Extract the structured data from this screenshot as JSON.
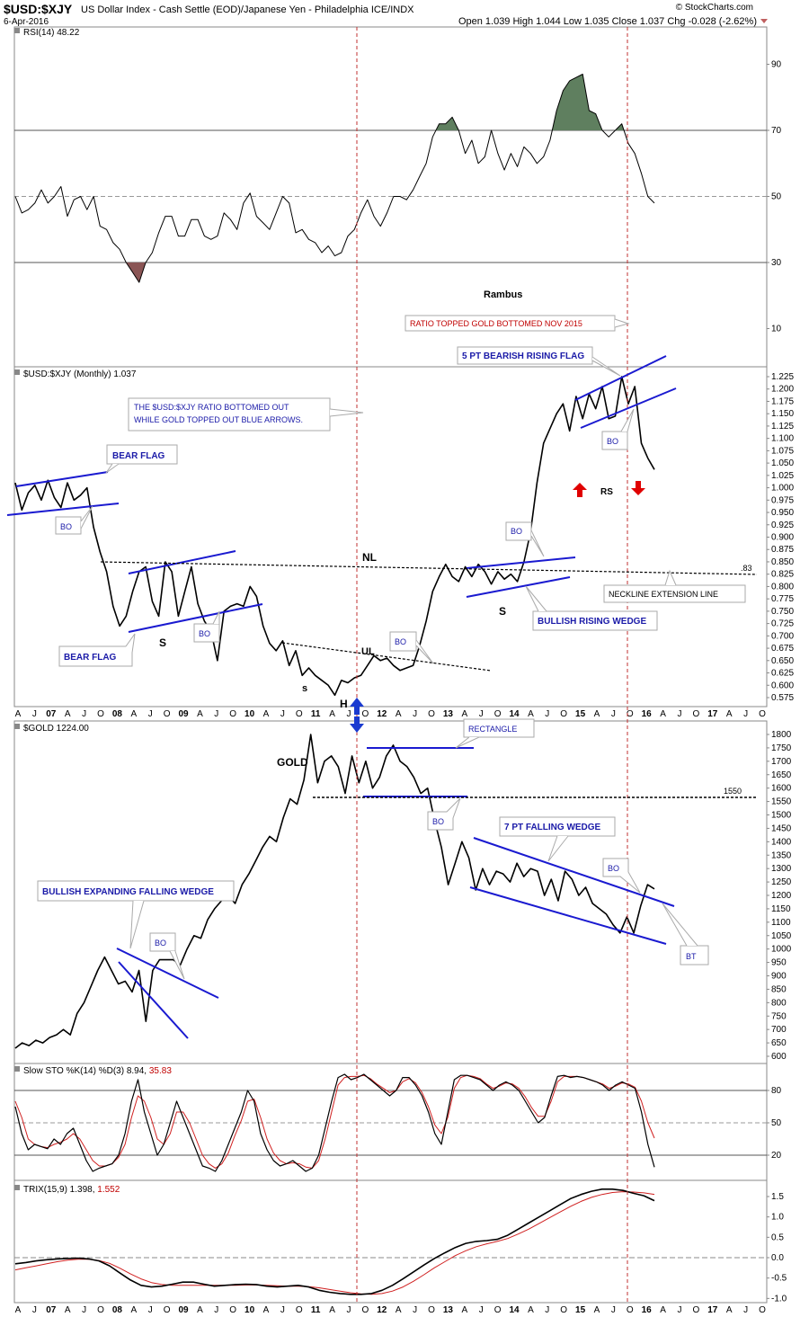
{
  "header": {
    "symbol": "$USD:$XJY",
    "description": "US Dollar Index - Cash Settle (EOD)/Japanese Yen - Philadelphia  ICE/INDX",
    "date": "6-Apr-2016",
    "watermark": "© StockCharts.com",
    "ohlc": "Open 1.039  High 1.044  Low 1.035  Close 1.037  Chg -0.028 (-2.62%)"
  },
  "x_axis": {
    "months": [
      "A",
      "J",
      "07",
      "A",
      "J",
      "O",
      "08",
      "A",
      "J",
      "O",
      "09",
      "A",
      "J",
      "O",
      "10",
      "A",
      "J",
      "O",
      "11",
      "A",
      "J",
      "O",
      "12",
      "A",
      "J",
      "O",
      "13",
      "A",
      "J",
      "O",
      "14",
      "A",
      "J",
      "O",
      "15",
      "A",
      "J",
      "O",
      "16",
      "A",
      "J",
      "O",
      "17",
      "A",
      "J",
      "O"
    ]
  },
  "panels": {
    "rsi": {
      "legend": "RSI(14) 48.22",
      "ticks": [
        "90",
        "70",
        "50",
        "30",
        "10"
      ],
      "tick_values": [
        90,
        70,
        50,
        30,
        10
      ],
      "ylim": [
        0,
        100
      ],
      "overbought": 70,
      "oversold": 30,
      "mid": 50,
      "fill_up": "#5f7f5f",
      "fill_down": "#8a5555"
    },
    "price": {
      "legend": "$USD:$XJY (Monthly) 1.037",
      "ticks": [
        "1.225",
        "1.200",
        "1.175",
        "1.150",
        "1.125",
        "1.100",
        "1.075",
        "1.050",
        "1.025",
        "1.000",
        "0.975",
        "0.950",
        "0.925",
        "0.900",
        "0.875",
        "0.850",
        "0.825",
        "0.800",
        "0.775",
        "0.750",
        "0.725",
        "0.700",
        "0.675",
        "0.650",
        "0.625",
        "0.600",
        "0.575"
      ],
      "ylim": [
        0.565,
        1.24
      ]
    },
    "gold": {
      "legend": "$GOLD 1224.00",
      "ticks": [
        "1800",
        "1750",
        "1700",
        "1650",
        "1600",
        "1550",
        "1500",
        "1450",
        "1400",
        "1350",
        "1300",
        "1250",
        "1200",
        "1150",
        "1100",
        "1050",
        "1000",
        "950",
        "900",
        "850",
        "800",
        "750",
        "700",
        "650",
        "600"
      ],
      "ylim": [
        580,
        1830
      ]
    },
    "sto": {
      "legend_k": "Slow STO %K(14) %D(3) 8.94,",
      "legend_d": "35.83",
      "ticks": [
        "80",
        "50",
        "20"
      ],
      "tick_values": [
        80,
        50,
        20
      ],
      "ylim": [
        0,
        100
      ]
    },
    "trix": {
      "legend_a": "TRIX(15,9) 1.398,",
      "legend_b": "1.552",
      "ticks": [
        "1.5",
        "1.0",
        "0.5",
        "0.0",
        "-0.5",
        "-1.0"
      ],
      "tick_values": [
        1.5,
        1.0,
        0.5,
        0.0,
        -0.5,
        -1.0
      ],
      "ylim": [
        -1.05,
        1.75
      ]
    }
  },
  "annotations": {
    "rambus": "Rambus",
    "ratio_topped": "RATIO TOPPED GOLD BOTTOMED NOV 2015",
    "five_pt": "5 PT BEARISH RISING FLAG",
    "ratio_bottomed_1": "THE $USD:$XJY RATIO BOTTOMED OUT",
    "ratio_bottomed_2": "WHILE GOLD TOPPED OUT BLUE ARROWS.",
    "bear_flag_1": "BEAR FLAG",
    "bear_flag_2": "BEAR FLAG",
    "bo": "BO",
    "nl": "NL",
    "ul": "UL",
    "s": "S",
    "s_small": "s",
    "h": "H",
    "rs": "RS",
    "neckline_ext": "NECKLINE EXTENSION LINE",
    "neckline_value": ".83",
    "bullish_wedge": "BULLISH RISING WEDGE",
    "gold_title": "GOLD",
    "rectangle": "RECTANGLE",
    "gold_1550": "1550",
    "seven_pt": "7 PT FALLING WEDGE",
    "bt": "BT",
    "expanding": "BULLISH EXPANDING FALLING WEDGE"
  },
  "chart_data": [
    {
      "type": "line",
      "title": "RSI(14)",
      "series": [
        {
          "name": "RSI(14)",
          "values": [
            50,
            45,
            46,
            48,
            52,
            48,
            50,
            53,
            44,
            49,
            50,
            46,
            50,
            41,
            40,
            36,
            34,
            30,
            27,
            24,
            30,
            33,
            39,
            44,
            44,
            38,
            38,
            43,
            43,
            38,
            37,
            38,
            45,
            43,
            40,
            48,
            51,
            44,
            42,
            40,
            45,
            50,
            48,
            39,
            40,
            37,
            36,
            33,
            35,
            32,
            33,
            38,
            40,
            45,
            49,
            44,
            41,
            45,
            50,
            50,
            49,
            52,
            56,
            60,
            68,
            72,
            72,
            74,
            70,
            63,
            67,
            60,
            62,
            70,
            63,
            58,
            63,
            59,
            65,
            63,
            60,
            62,
            67,
            76,
            82,
            85,
            86,
            87,
            76,
            75,
            70,
            68,
            70,
            72,
            66,
            63,
            57,
            50,
            48
          ]
        }
      ]
    },
    {
      "type": "line",
      "title": "$USD:$XJY (Monthly)",
      "series": [
        {
          "name": "$USD:$XJY",
          "values": [
            1.01,
            0.955,
            0.99,
            1.005,
            0.975,
            1.015,
            0.98,
            0.96,
            1.01,
            0.975,
            0.985,
            1.0,
            0.92,
            0.87,
            0.83,
            0.76,
            0.72,
            0.74,
            0.79,
            0.83,
            0.84,
            0.77,
            0.74,
            0.85,
            0.83,
            0.74,
            0.79,
            0.84,
            0.765,
            0.73,
            0.71,
            0.65,
            0.75,
            0.76,
            0.765,
            0.76,
            0.8,
            0.78,
            0.72,
            0.685,
            0.67,
            0.69,
            0.64,
            0.67,
            0.62,
            0.635,
            0.62,
            0.61,
            0.6,
            0.58,
            0.61,
            0.605,
            0.615,
            0.62,
            0.64,
            0.66,
            0.65,
            0.655,
            0.64,
            0.63,
            0.635,
            0.64,
            0.68,
            0.73,
            0.79,
            0.82,
            0.845,
            0.82,
            0.81,
            0.84,
            0.82,
            0.845,
            0.83,
            0.805,
            0.83,
            0.815,
            0.825,
            0.81,
            0.85,
            0.91,
            1.01,
            1.09,
            1.12,
            1.15,
            1.17,
            1.115,
            1.185,
            1.14,
            1.19,
            1.16,
            1.205,
            1.14,
            1.145,
            1.225,
            1.17,
            1.205,
            1.09,
            1.06,
            1.037
          ]
        }
      ]
    },
    {
      "type": "line",
      "title": "$GOLD",
      "series": [
        {
          "name": "$GOLD",
          "values": [
            630,
            650,
            640,
            660,
            650,
            670,
            680,
            700,
            680,
            760,
            800,
            860,
            920,
            970,
            920,
            870,
            880,
            840,
            920,
            730,
            920,
            960,
            960,
            960,
            940,
            1000,
            1050,
            1040,
            1110,
            1150,
            1180,
            1200,
            1170,
            1240,
            1280,
            1330,
            1380,
            1420,
            1400,
            1490,
            1560,
            1540,
            1630,
            1800,
            1620,
            1700,
            1720,
            1680,
            1580,
            1720,
            1620,
            1700,
            1600,
            1640,
            1720,
            1760,
            1700,
            1680,
            1640,
            1580,
            1600,
            1480,
            1380,
            1240,
            1320,
            1400,
            1340,
            1220,
            1300,
            1240,
            1290,
            1280,
            1250,
            1320,
            1270,
            1300,
            1290,
            1200,
            1260,
            1180,
            1290,
            1260,
            1200,
            1230,
            1170,
            1150,
            1130,
            1090,
            1060,
            1120,
            1060,
            1160,
            1240,
            1224
          ]
        }
      ]
    },
    {
      "type": "line",
      "title": "Slow STO %K(14) %D(3)",
      "series": [
        {
          "name": "%K",
          "values": [
            65,
            40,
            25,
            30,
            28,
            26,
            35,
            30,
            40,
            45,
            30,
            15,
            5,
            8,
            10,
            12,
            20,
            40,
            70,
            90,
            60,
            40,
            20,
            30,
            50,
            70,
            55,
            40,
            25,
            10,
            8,
            5,
            15,
            30,
            45,
            60,
            80,
            70,
            40,
            25,
            15,
            10,
            12,
            15,
            10,
            5,
            8,
            20,
            45,
            70,
            92,
            95,
            90,
            92,
            95,
            90,
            85,
            80,
            75,
            80,
            92,
            92,
            85,
            75,
            60,
            40,
            30,
            60,
            90,
            94,
            94,
            92,
            90,
            85,
            80,
            85,
            88,
            85,
            80,
            70,
            60,
            50,
            55,
            75,
            93,
            94,
            92,
            93,
            92,
            90,
            88,
            85,
            80,
            85,
            88,
            85,
            82,
            60,
            30,
            8.94
          ]
        },
        {
          "name": "%D",
          "values": [
            70,
            55,
            35,
            30,
            28,
            27,
            30,
            32,
            35,
            40,
            35,
            25,
            15,
            10,
            10,
            12,
            18,
            30,
            55,
            75,
            70,
            55,
            35,
            30,
            40,
            60,
            60,
            50,
            35,
            20,
            12,
            8,
            12,
            22,
            38,
            52,
            70,
            72,
            55,
            35,
            22,
            15,
            12,
            13,
            12,
            9,
            8,
            15,
            35,
            60,
            85,
            92,
            93,
            93,
            94,
            91,
            86,
            82,
            78,
            80,
            88,
            91,
            87,
            78,
            65,
            48,
            40,
            55,
            82,
            92,
            94,
            93,
            91,
            86,
            82,
            84,
            87,
            86,
            82,
            74,
            64,
            56,
            56,
            70,
            88,
            93,
            93,
            93,
            92,
            90,
            88,
            86,
            82,
            84,
            87,
            86,
            83,
            70,
            50,
            35.83
          ]
        }
      ]
    },
    {
      "type": "line",
      "title": "TRIX(15,9)",
      "series": [
        {
          "name": "TRIX",
          "values": [
            -0.15,
            -0.12,
            -0.08,
            -0.05,
            -0.03,
            -0.02,
            -0.01,
            -0.03,
            -0.08,
            -0.2,
            -0.38,
            -0.55,
            -0.68,
            -0.72,
            -0.7,
            -0.65,
            -0.6,
            -0.6,
            -0.65,
            -0.7,
            -0.68,
            -0.66,
            -0.65,
            -0.66,
            -0.7,
            -0.72,
            -0.7,
            -0.68,
            -0.72,
            -0.8,
            -0.85,
            -0.88,
            -0.9,
            -0.9,
            -0.88,
            -0.8,
            -0.68,
            -0.52,
            -0.35,
            -0.18,
            -0.02,
            0.12,
            0.25,
            0.35,
            0.4,
            0.42,
            0.45,
            0.55,
            0.7,
            0.85,
            1.0,
            1.15,
            1.3,
            1.45,
            1.55,
            1.63,
            1.68,
            1.68,
            1.65,
            1.58,
            1.52,
            1.398
          ]
        },
        {
          "name": "Signal",
          "values": [
            -0.3,
            -0.25,
            -0.2,
            -0.15,
            -0.1,
            -0.06,
            -0.04,
            -0.04,
            -0.07,
            -0.14,
            -0.26,
            -0.4,
            -0.52,
            -0.61,
            -0.66,
            -0.68,
            -0.68,
            -0.68,
            -0.68,
            -0.68,
            -0.68,
            -0.68,
            -0.67,
            -0.67,
            -0.68,
            -0.69,
            -0.7,
            -0.7,
            -0.71,
            -0.74,
            -0.78,
            -0.82,
            -0.86,
            -0.89,
            -0.9,
            -0.88,
            -0.82,
            -0.72,
            -0.58,
            -0.42,
            -0.25,
            -0.1,
            0.05,
            0.17,
            0.27,
            0.34,
            0.4,
            0.47,
            0.58,
            0.7,
            0.84,
            0.98,
            1.12,
            1.26,
            1.38,
            1.48,
            1.55,
            1.6,
            1.62,
            1.61,
            1.59,
            1.552
          ]
        }
      ]
    }
  ]
}
